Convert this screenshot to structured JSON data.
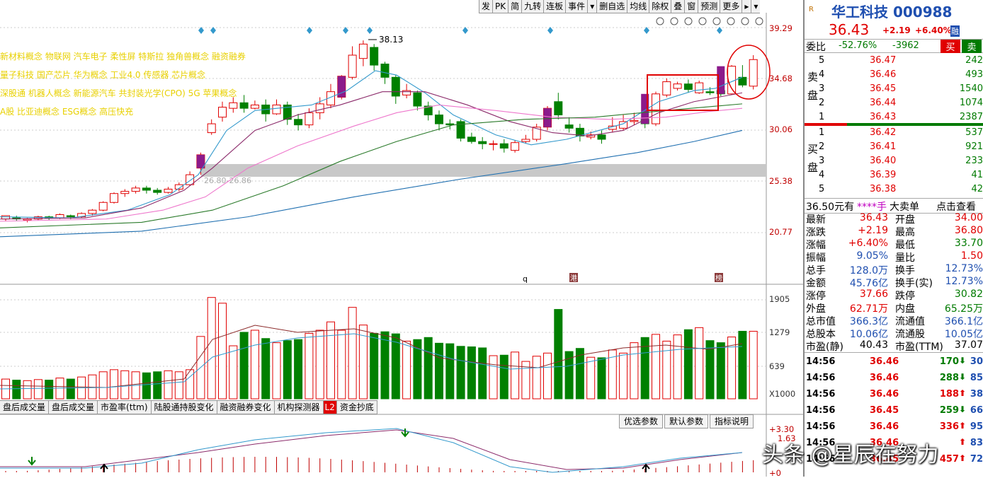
{
  "toolbar": [
    "发",
    "PK",
    "简",
    "九转",
    "连板",
    "事件",
    "▾",
    "删自选",
    "均线",
    "除权",
    "叠",
    "窗",
    "预测",
    "更多",
    "▸",
    "▾"
  ],
  "concepts": [
    "新材料概念 物联网 汽车电子 柔性屏 特斯拉 独角兽概念 融资融券",
    "量子科技 国产芯片 华为概念 工业4.0 传感器 芯片概念",
    "深股通 机器人概念 新能源汽车 共封装光学(CPO) 5G 苹果概念",
    "A股 比亚迪概念 ESG概念 高压快充"
  ],
  "chart": {
    "peak_label": "38.13",
    "gap_label": "26.80-26.86",
    "price_axis": [
      "39.29",
      "34.68",
      "30.06",
      "25.38",
      "20.77"
    ],
    "vol_axis": [
      "1905",
      "1279",
      "639",
      "X1000"
    ],
    "macd_axis": [
      "+3.30",
      "1.63",
      "+0"
    ],
    "event_markers": [
      "q",
      "港",
      "榜"
    ]
  },
  "indicator_tabs": [
    "盘后成交量",
    "盘后成交量",
    "市盈率(ttm)",
    "陆股通持股变化",
    "融资融券变化",
    "机构探测器",
    "L2",
    "资金抄底"
  ],
  "param_buttons": [
    "优选参数",
    "默认参数",
    "指标说明"
  ],
  "stock": {
    "badge": "R",
    "name": "华工科技 000988",
    "price": "36.43",
    "change": "+2.19",
    "change_pct": "+6.40%",
    "margin_badge": "融"
  },
  "weibi": {
    "label": "委比",
    "ratio": "-52.76%",
    "diff": "-3962",
    "buy_btn": "买",
    "sell_btn": "卖"
  },
  "orderbook": {
    "sell_label": "卖盘",
    "buy_label": "买盘",
    "asks": [
      {
        "lvl": "5",
        "price": "36.47",
        "vol": "242"
      },
      {
        "lvl": "4",
        "price": "36.46",
        "vol": "493"
      },
      {
        "lvl": "3",
        "price": "36.45",
        "vol": "1540"
      },
      {
        "lvl": "2",
        "price": "36.44",
        "vol": "1074"
      },
      {
        "lvl": "1",
        "price": "36.43",
        "vol": "2387"
      }
    ],
    "bids": [
      {
        "lvl": "1",
        "price": "36.42",
        "vol": "537"
      },
      {
        "lvl": "2",
        "price": "36.41",
        "vol": "921"
      },
      {
        "lvl": "3",
        "price": "36.40",
        "vol": "233"
      },
      {
        "lvl": "4",
        "price": "36.39",
        "vol": "41"
      },
      {
        "lvl": "5",
        "price": "36.38",
        "vol": "42"
      }
    ]
  },
  "info_bar": {
    "price_text": "36.50元有",
    "stars": "****手",
    "big_sell": "大卖单",
    "check": "点击查看"
  },
  "stats": [
    {
      "l": "最新",
      "lv": "36.43",
      "r": "开盘",
      "rv": "34.00",
      "lc": "#e00000",
      "rc": "#e00000"
    },
    {
      "l": "涨跌",
      "lv": "+2.19",
      "r": "最高",
      "rv": "36.80",
      "lc": "#e00000",
      "rc": "#e00000"
    },
    {
      "l": "涨幅",
      "lv": "+6.40%",
      "r": "最低",
      "rv": "33.70",
      "lc": "#e00000",
      "rc": "#007a00"
    },
    {
      "l": "振幅",
      "lv": "9.05%",
      "r": "量比",
      "rv": "1.50",
      "lc": "#1f4fb0",
      "rc": "#e00000"
    },
    {
      "l": "总手",
      "lv": "128.0万",
      "r": "换手",
      "rv": "12.73%",
      "lc": "#1f4fb0",
      "rc": "#1f4fb0"
    },
    {
      "l": "金额",
      "lv": "45.76亿",
      "r": "换手(实)",
      "rv": "12.73%",
      "lc": "#1f4fb0",
      "rc": "#1f4fb0"
    },
    {
      "l": "涨停",
      "lv": "37.66",
      "r": "跌停",
      "rv": "30.82",
      "lc": "#e00000",
      "rc": "#007a00"
    },
    {
      "l": "外盘",
      "lv": "62.71万",
      "r": "内盘",
      "rv": "65.25万",
      "lc": "#e00000",
      "rc": "#007a00"
    },
    {
      "l": "总市值",
      "lv": "366.3亿",
      "r": "流通值",
      "rv": "366.1亿",
      "lc": "#1f4fb0",
      "rc": "#1f4fb0"
    },
    {
      "l": "总股本",
      "lv": "10.06亿",
      "r": "流通股",
      "rv": "10.05亿",
      "lc": "#1f4fb0",
      "rc": "#1f4fb0"
    },
    {
      "l": "市盈(静)",
      "lv": "40.43",
      "r": "市盈(TTM)",
      "rv": "37.07",
      "lc": "#000",
      "rc": "#000"
    }
  ],
  "ticks": [
    {
      "time": "14:56",
      "price": "36.46",
      "vol": "170",
      "dir": "down",
      "cnt": "30"
    },
    {
      "time": "14:56",
      "price": "36.46",
      "vol": "288",
      "dir": "down",
      "cnt": "85"
    },
    {
      "time": "14:56",
      "price": "36.46",
      "vol": "188",
      "dir": "up",
      "cnt": "38"
    },
    {
      "time": "14:56",
      "price": "36.45",
      "vol": "259",
      "dir": "down",
      "cnt": "66"
    },
    {
      "time": "14:56",
      "price": "36.46",
      "vol": "336",
      "dir": "up",
      "cnt": "95"
    },
    {
      "time": "14:56",
      "price": "36.46",
      "vol": "",
      "dir": "up",
      "cnt": "83"
    },
    {
      "time": "14:56",
      "price": "36.45",
      "vol": "457",
      "dir": "up",
      "cnt": "72"
    }
  ],
  "watermark": "头条 @星辰在努力"
}
